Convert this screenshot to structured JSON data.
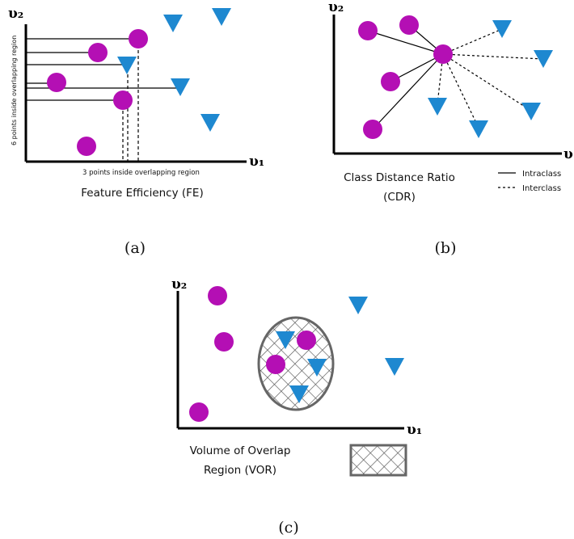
{
  "panel_a": {
    "y_axis": "υ₂",
    "x_axis": "υ₁",
    "y_axis_note": "6 points inside overlapping region",
    "x_axis_note": "3 points inside overlapping region",
    "title": "Feature Efficiency (FE)",
    "caption": "(a)"
  },
  "panel_b": {
    "y_axis": "υ₂",
    "x_axis": "υ₁",
    "title_line1": "Class Distance Ratio",
    "title_line2": "(CDR)",
    "legend_solid": "Intraclass",
    "legend_dashed": "Interclass",
    "caption": "(b)"
  },
  "panel_c": {
    "y_axis": "υ₂",
    "x_axis": "υ₁",
    "title_line1": "Volume of Overlap",
    "title_line2": "Region (VOR)",
    "caption": "(c)"
  },
  "colors": {
    "circle": "#b40fb4",
    "triangle": "#1e88d0",
    "axis": "#000000",
    "region": "#666666"
  }
}
